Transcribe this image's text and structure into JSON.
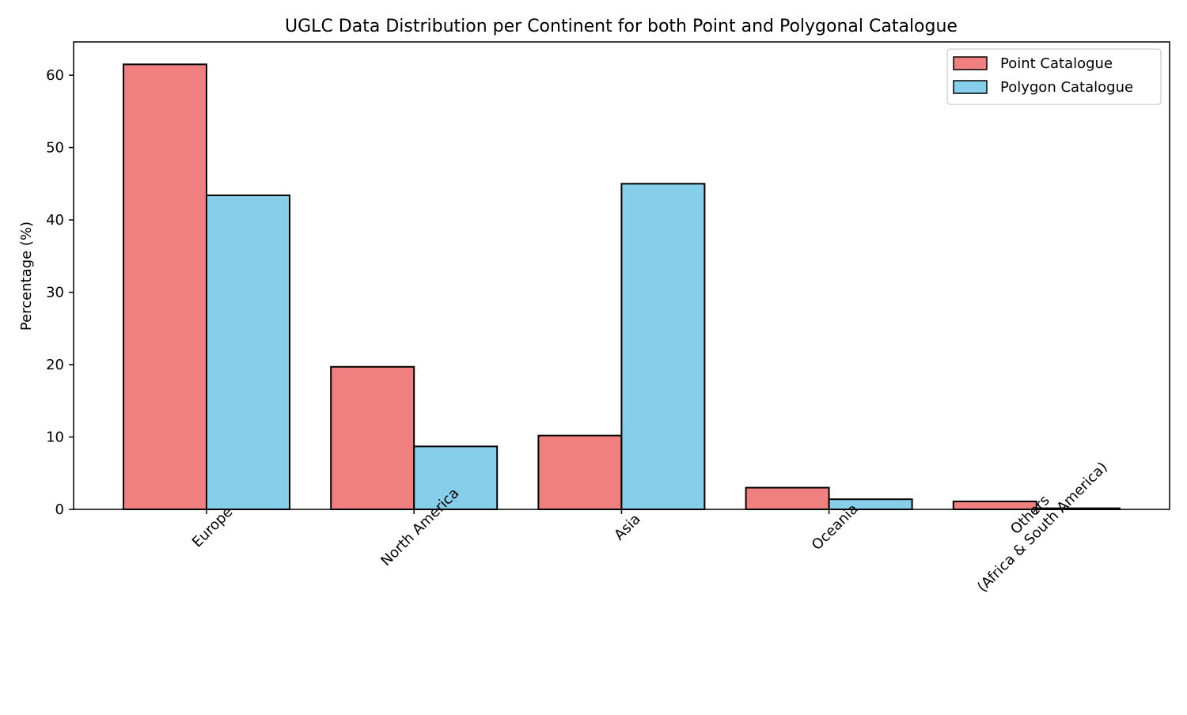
{
  "chart_data": {
    "type": "bar",
    "title": "UGLC Data Distribution per Continent for both Point and Polygonal Catalogue",
    "xlabel": "",
    "ylabel": "Percentage (%)",
    "ylim": [
      0,
      64.6
    ],
    "yticks": [
      0,
      10,
      20,
      30,
      40,
      50,
      60
    ],
    "grid": false,
    "legend_position": "top-right",
    "categories": [
      [
        "Europe"
      ],
      [
        "North America"
      ],
      [
        "Asia"
      ],
      [
        "Oceania"
      ],
      [
        "Others",
        "(Africa & South America)"
      ]
    ],
    "series": [
      {
        "name": "Point Catalogue",
        "color": "#f08080",
        "values": [
          61.5,
          19.7,
          10.2,
          3.0,
          1.1
        ]
      },
      {
        "name": "Polygon Catalogue",
        "color": "#87ceeb",
        "values": [
          43.4,
          8.7,
          45.0,
          1.4,
          0.15
        ]
      }
    ]
  }
}
